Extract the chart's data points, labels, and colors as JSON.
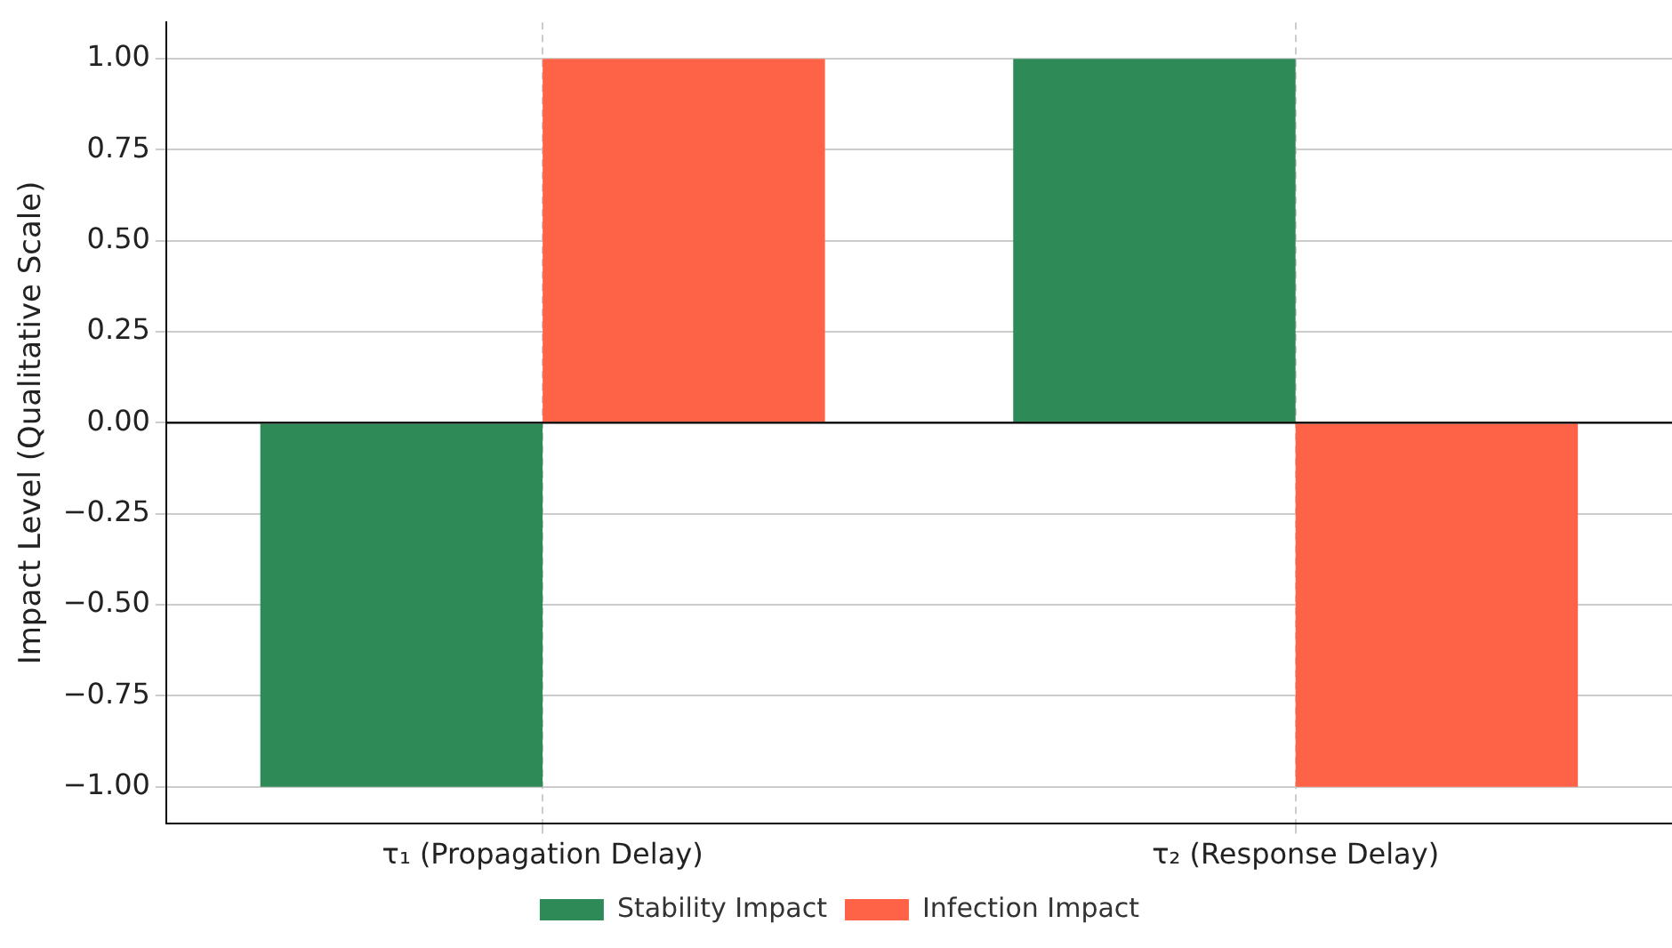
{
  "chart_data": {
    "type": "bar",
    "ylabel": "Impact Level (Qualitative Scale)",
    "categories": [
      "τ₁ (Propagation Delay)",
      "τ₂ (Response Delay)"
    ],
    "series": [
      {
        "name": "Stability Impact",
        "color": "#2e8b57",
        "values": [
          -1,
          1
        ]
      },
      {
        "name": "Infection Impact",
        "color": "#ff6347",
        "values": [
          1,
          -1
        ]
      }
    ],
    "ylim": [
      -1.1,
      1.1
    ],
    "yticks": [
      {
        "value": -1,
        "label": "−1.00"
      },
      {
        "value": -0.75,
        "label": "−0.75"
      },
      {
        "value": -0.5,
        "label": "−0.50"
      },
      {
        "value": -0.25,
        "label": "−0.25"
      },
      {
        "value": 0,
        "label": "0.00"
      },
      {
        "value": 0.25,
        "label": "0.25"
      },
      {
        "value": 0.5,
        "label": "0.50"
      },
      {
        "value": 0.75,
        "label": "0.75"
      },
      {
        "value": 1,
        "label": "1.00"
      }
    ],
    "ref_lines": [
      {
        "axis": "y",
        "value": 0,
        "color": "#000000"
      }
    ],
    "grid": true,
    "legend": "bottom"
  }
}
